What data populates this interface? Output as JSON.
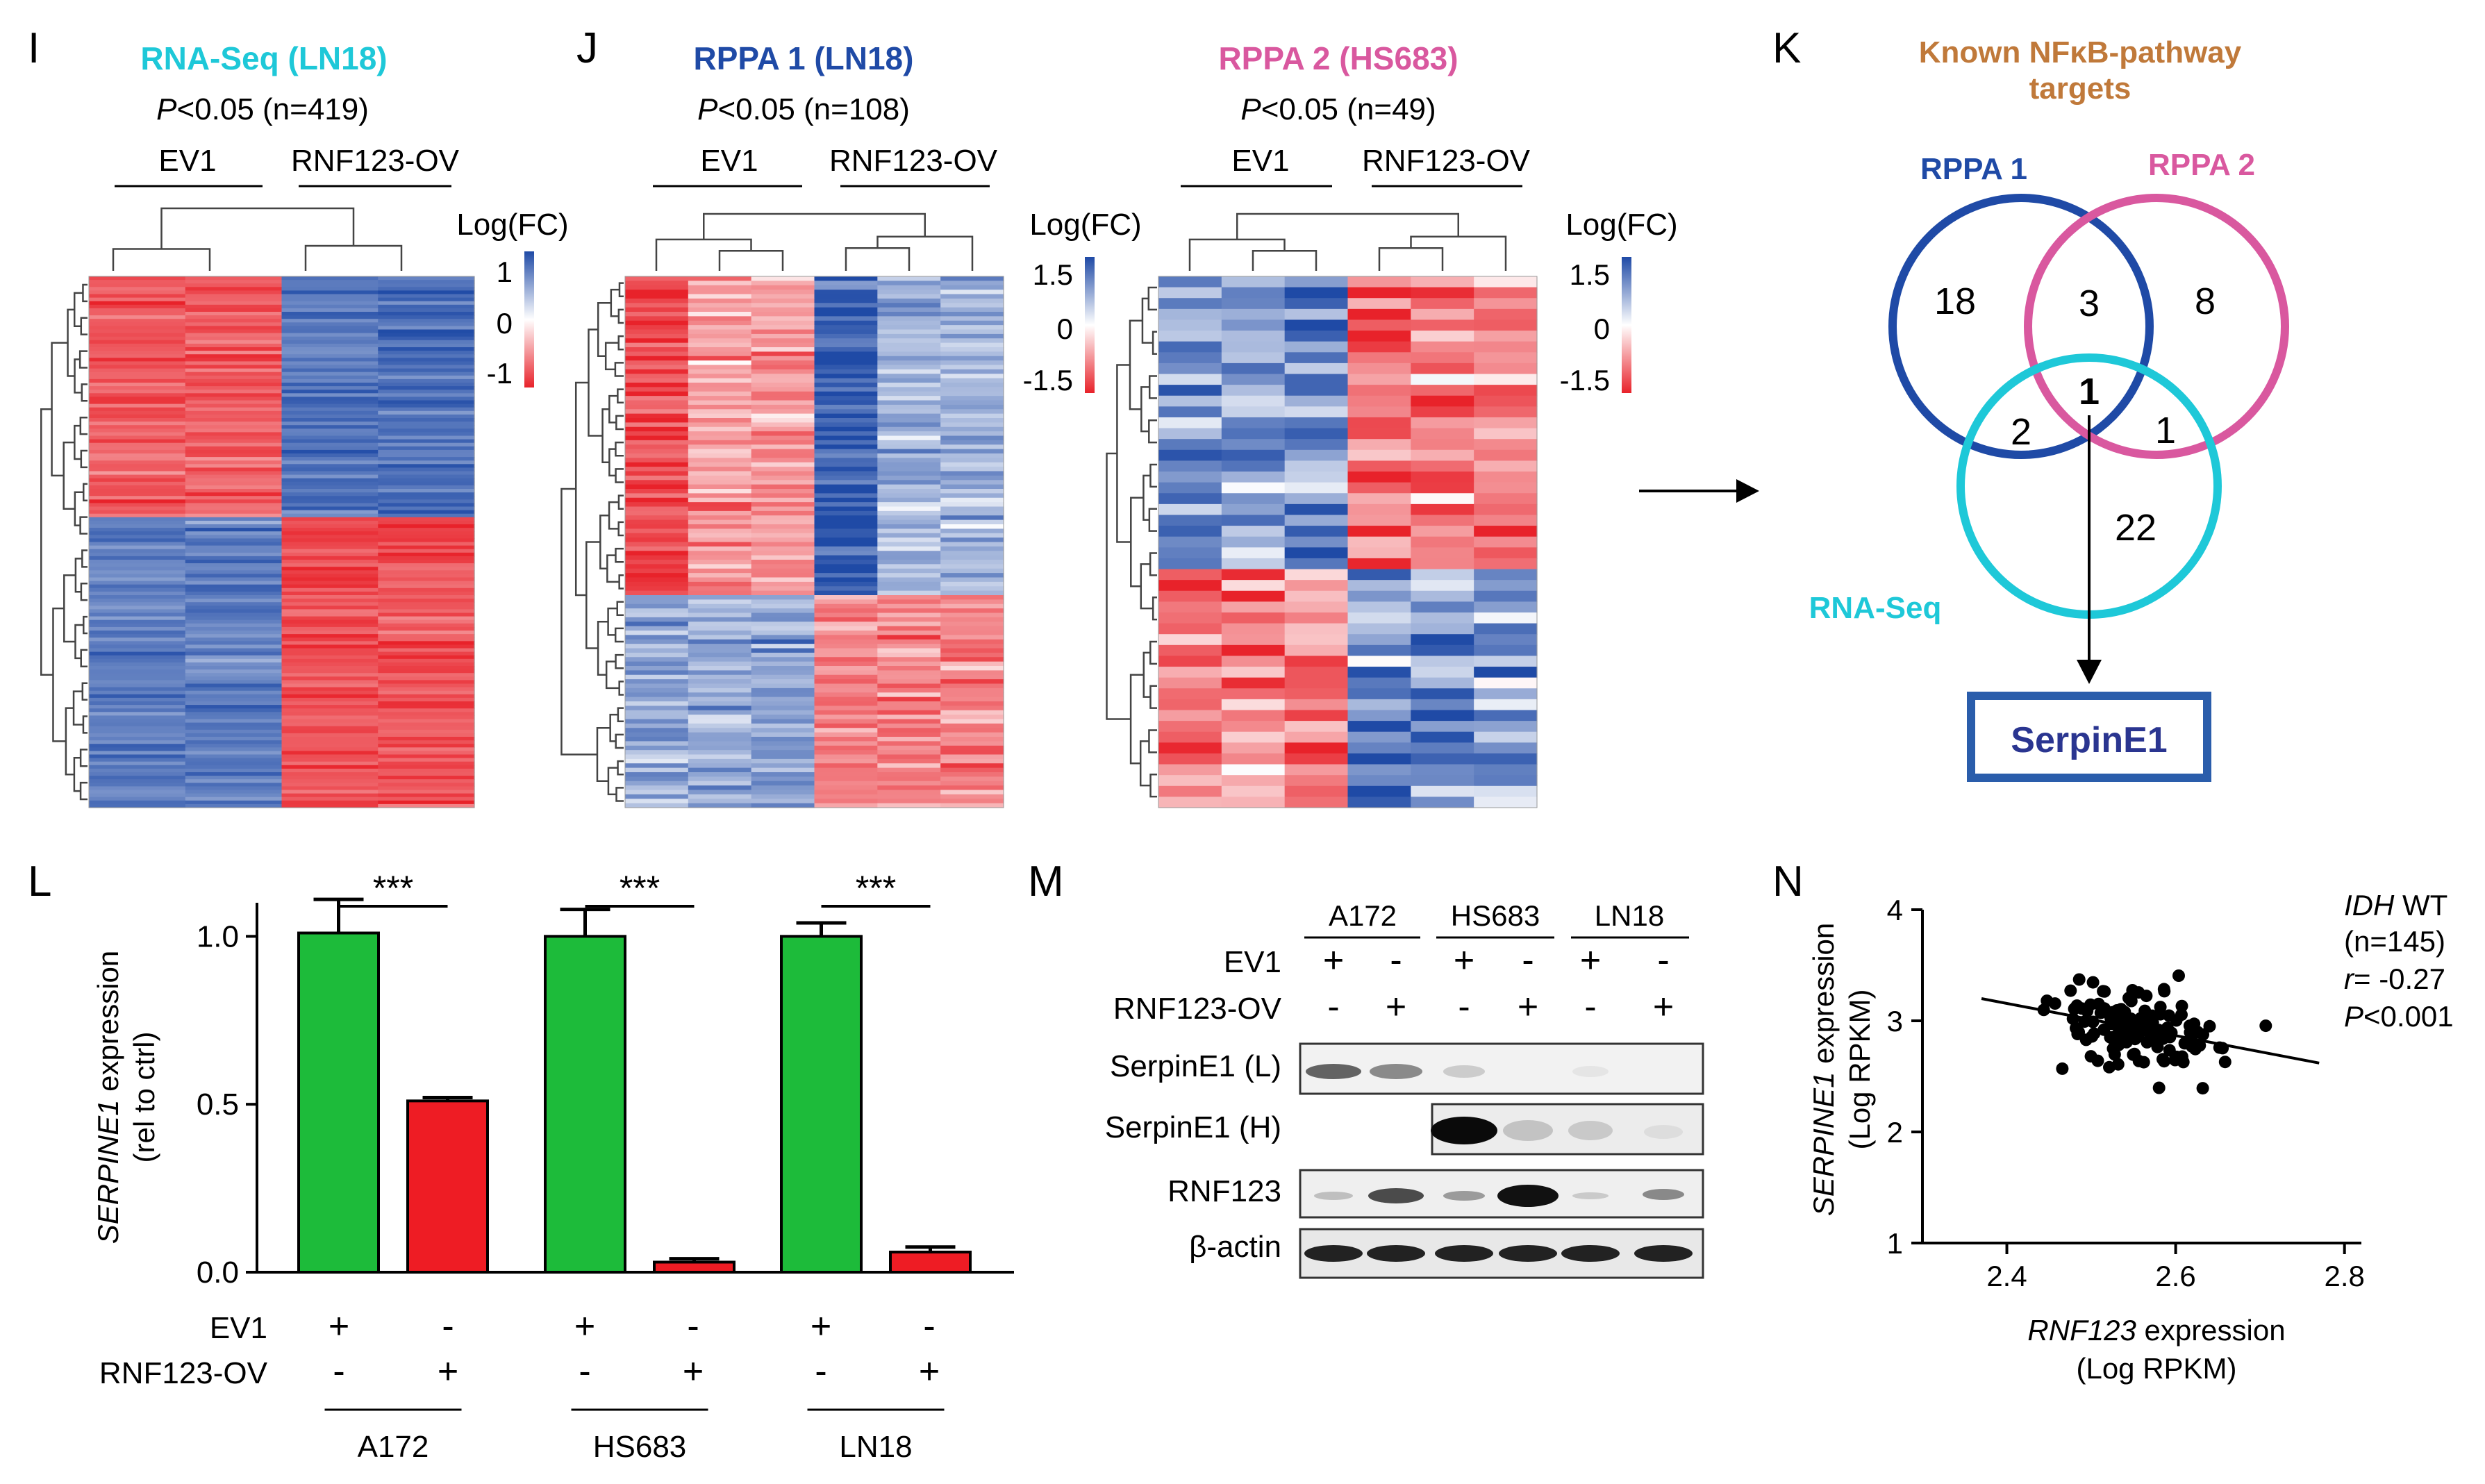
{
  "panels": {
    "I": {
      "letter": "I",
      "title": "RNA-Seq (LN18)",
      "p_label": "P",
      "stat": "<0.05 (n=419)",
      "groups": [
        "EV1",
        "RNF123-OV"
      ],
      "legend": {
        "title": "Log(FC)",
        "ticks": [
          "1",
          "0",
          "-1"
        ]
      }
    },
    "J": {
      "letter": "J",
      "rppa1": {
        "title": "RPPA 1 (LN18)",
        "p_label": "P",
        "stat": "<0.05 (n=108)",
        "groups": [
          "EV1",
          "RNF123-OV"
        ],
        "legend": {
          "title": "Log(FC)",
          "ticks": [
            "1.5",
            "0",
            "-1.5"
          ]
        }
      },
      "rppa2": {
        "title": "RPPA 2 (HS683)",
        "p_label": "P",
        "stat": "<0.05 (n=49)",
        "groups": [
          "EV1",
          "RNF123-OV"
        ],
        "legend": {
          "title": "Log(FC)",
          "ticks": [
            "1.5",
            "0",
            "-1.5"
          ]
        }
      }
    },
    "K": {
      "letter": "K",
      "title_line1": "Known NFκB-pathway",
      "title_line2": "targets",
      "labels": {
        "rppa1": "RPPA 1",
        "rppa2": "RPPA 2",
        "rnaseq": "RNA-Seq"
      },
      "counts": {
        "rppa1_only": "18",
        "rppa1_rppa2": "3",
        "rppa2_only": "8",
        "all_three": "1",
        "rppa1_rnaseq": "2",
        "rppa2_rnaseq": "1",
        "rnaseq_only": "22"
      },
      "result": "SerpinE1"
    },
    "L": {
      "letter": "L",
      "row_labels": [
        "EV1",
        "RNF123-OV"
      ]
    },
    "M": {
      "letter": "M",
      "cell_lines": [
        "A172",
        "HS683",
        "LN18"
      ],
      "row_labels": [
        "EV1",
        "RNF123-OV"
      ],
      "ev1_signs": [
        "+",
        "-",
        "+",
        "-",
        "+",
        "-"
      ],
      "ov_signs": [
        "-",
        "+",
        "-",
        "+",
        "-",
        "+"
      ],
      "blots": [
        "SerpinE1 (L)",
        "SerpinE1 (H)",
        "RNF123",
        "β-actin"
      ]
    },
    "N": {
      "letter": "N",
      "annot": {
        "idh": "IDH",
        "wt": " WT",
        "n": "(n=145)",
        "r_label": "r",
        "r_value": "= -0.27",
        "p_label": "P",
        "p_value": "<0.001"
      }
    }
  },
  "colors": {
    "heat_blue": "#1f4aa6",
    "heat_red": "#e8222a",
    "heat_white": "#ffffff",
    "rnaseq": "#1ec8d8",
    "rppa1": "#1f4aa6",
    "rppa2": "#d9589f",
    "bar_ev1": "#1dbb3a",
    "bar_ov": "#ee1c24",
    "knownTitle": "#c0793a",
    "serpin": "#2a3590"
  },
  "chart_data": [
    {
      "type": "bar",
      "title": "",
      "ylabel_italic": "SERPINE1",
      "ylabel": " expression",
      "ylabel2": "(rel to ctrl)",
      "ylim": [
        0,
        1.1
      ],
      "yticks": [
        "0.0",
        "0.5",
        "1.0"
      ],
      "categories": [
        "A172",
        "HS683",
        "LN18"
      ],
      "series": [
        {
          "name": "EV1",
          "values": [
            1.01,
            1.0,
            1.0
          ],
          "errors": [
            0.1,
            0.08,
            0.04
          ],
          "signs": [
            "+",
            "+",
            "+"
          ]
        },
        {
          "name": "RNF123-OV",
          "values": [
            0.51,
            0.03,
            0.06
          ],
          "errors": [
            0.01,
            0.01,
            0.015
          ],
          "signs": [
            "-",
            "-",
            "-"
          ]
        }
      ],
      "ev1_signs": [
        "+",
        "-",
        "+",
        "-",
        "+",
        "-"
      ],
      "ov_signs": [
        "-",
        "+",
        "-",
        "+",
        "-",
        "+"
      ],
      "significance": [
        "***",
        "***",
        "***"
      ]
    },
    {
      "type": "scatter",
      "xlabel_italic": "RNF123",
      "xlabel": " expression",
      "xlabel2": "(Log RPKM)",
      "ylabel_italic": "SERPINE1",
      "ylabel": " expression",
      "ylabel2": "(Log RPKM)",
      "xlim": [
        2.3,
        2.82
      ],
      "ylim": [
        1,
        4
      ],
      "xticks": [
        "2.4",
        "2.6",
        "2.8"
      ],
      "yticks": [
        "1",
        "2",
        "3",
        "4"
      ],
      "n": 145,
      "fit": {
        "x1": 2.37,
        "y1": 3.2,
        "x2": 2.77,
        "y2": 2.62
      }
    }
  ]
}
